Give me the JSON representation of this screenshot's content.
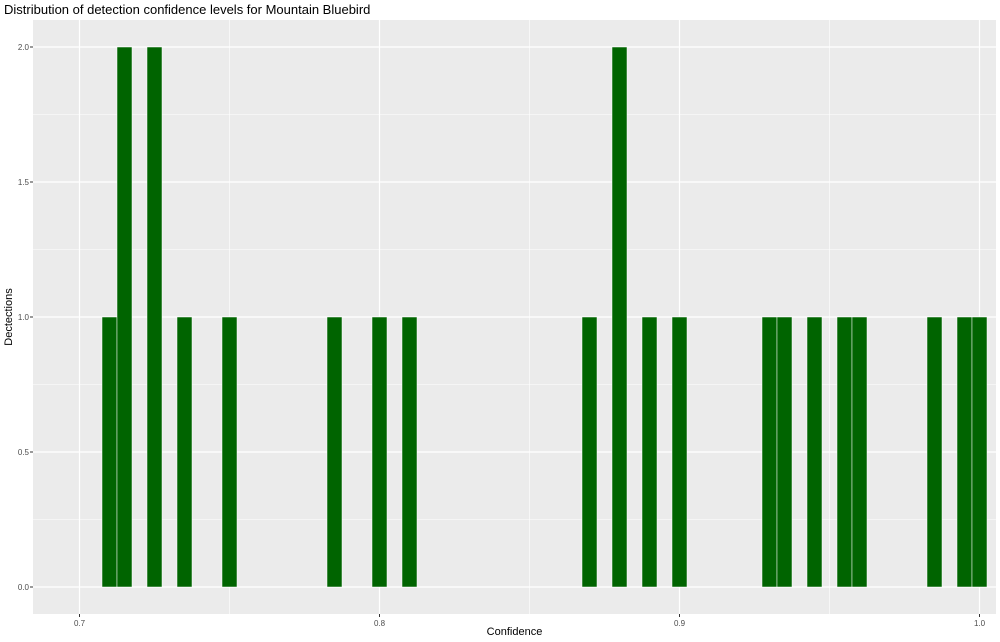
{
  "chart_data": {
    "type": "bar",
    "title": "Distribution of detection confidence levels for Mountain Bluebird",
    "xlabel": "Confidence",
    "ylabel": "Dectections",
    "xlim": [
      0.6845,
      1.0055
    ],
    "ylim": [
      -0.1,
      2.1
    ],
    "x_ticks": [
      "0.7",
      "0.8",
      "0.9",
      "1.0"
    ],
    "y_ticks": [
      "0.0",
      "0.5",
      "1.0",
      "1.5",
      "2.0"
    ],
    "bin_width": 0.005,
    "grid": true,
    "legend": "none",
    "bar_color": "#006400",
    "background_color": "#EBEBEB",
    "bins": [
      {
        "x": 0.71,
        "count": 1
      },
      {
        "x": 0.715,
        "count": 2
      },
      {
        "x": 0.725,
        "count": 2
      },
      {
        "x": 0.735,
        "count": 1
      },
      {
        "x": 0.75,
        "count": 1
      },
      {
        "x": 0.785,
        "count": 1
      },
      {
        "x": 0.8,
        "count": 1
      },
      {
        "x": 0.81,
        "count": 1
      },
      {
        "x": 0.87,
        "count": 1
      },
      {
        "x": 0.88,
        "count": 2
      },
      {
        "x": 0.89,
        "count": 1
      },
      {
        "x": 0.9,
        "count": 1
      },
      {
        "x": 0.93,
        "count": 1
      },
      {
        "x": 0.935,
        "count": 1
      },
      {
        "x": 0.945,
        "count": 1
      },
      {
        "x": 0.955,
        "count": 1
      },
      {
        "x": 0.96,
        "count": 1
      },
      {
        "x": 0.985,
        "count": 1
      },
      {
        "x": 0.995,
        "count": 1
      },
      {
        "x": 1.0,
        "count": 1
      }
    ]
  }
}
